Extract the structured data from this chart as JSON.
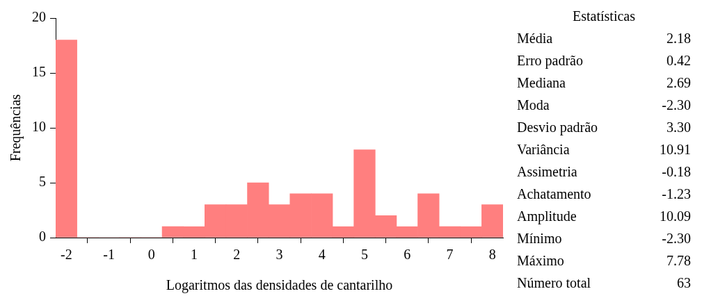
{
  "chart_data": [
    {
      "type": "histogram",
      "xlabel": "Logaritmos das densidades de cantarilho",
      "ylabel": "Frequências",
      "bins": [
        -2.25,
        -1.75,
        -1.25,
        -0.75,
        -0.25,
        0.25,
        0.75,
        1.25,
        1.75,
        2.25,
        2.75,
        3.25,
        3.75,
        4.25,
        4.75,
        5.25,
        5.75,
        6.25,
        6.75,
        7.25,
        7.75,
        8.25
      ],
      "values": [
        18,
        0,
        0,
        0,
        0,
        1,
        1,
        3,
        3,
        5,
        3,
        4,
        4,
        1,
        8,
        2,
        1,
        4,
        1,
        1,
        3
      ],
      "color": "#ff7f7f",
      "xlim": [
        -2.25,
        8.25
      ],
      "xticks": [
        -2,
        -1,
        0,
        1,
        2,
        3,
        4,
        5,
        6,
        7,
        8
      ],
      "ylim": [
        0,
        20
      ],
      "yticks": [
        0,
        5,
        10,
        15,
        20
      ],
      "grid": false,
      "legend": false
    },
    {
      "type": "other",
      "title": "Estatísticas",
      "categories": [
        "Média",
        "Erro padrão",
        "Mediana",
        "Moda",
        "Desvio padrão",
        "Variância",
        "Assimetria",
        "Achatamento",
        "Amplitude",
        "Mínimo",
        "Máximo",
        "Número total"
      ],
      "value_labels": [
        "2.18",
        "0.42",
        "2.69",
        "-2.30",
        "3.30",
        "10.91",
        "-0.18",
        "-1.23",
        "10.09",
        "-2.30",
        "7.78",
        "63"
      ]
    }
  ]
}
